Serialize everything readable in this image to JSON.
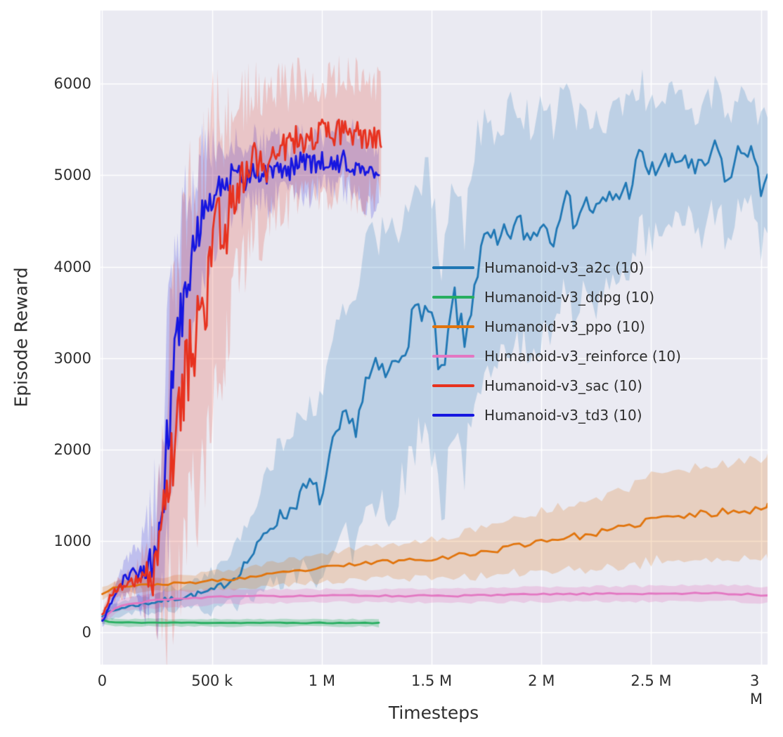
{
  "chart_data": {
    "type": "line",
    "title": "",
    "xlabel": "Timesteps",
    "ylabel": "Episode Reward",
    "xlim": [
      -8000,
      3030000
    ],
    "ylim": [
      -350,
      6800
    ],
    "x_ticks": [
      0,
      500000,
      1000000,
      1500000,
      2000000,
      2500000,
      3000000
    ],
    "x_tick_labels": [
      "0",
      "500 k",
      "1 M",
      "1.5 M",
      "2 M",
      "2.5 M",
      "3 M"
    ],
    "y_ticks": [
      0,
      1000,
      2000,
      3000,
      4000,
      5000,
      6000
    ],
    "y_tick_labels": [
      "0",
      "1000",
      "2000",
      "3000",
      "4000",
      "5000",
      "6000"
    ],
    "grid": true,
    "plot_background": "#eaeaf2",
    "grid_color": "#ffffff",
    "legend_position": "center-right-inside",
    "series": [
      {
        "key": "a2c",
        "legend_label": "Humanoid-v3_a2c (10)",
        "color": "#1f77b4",
        "band_alpha": 0.22,
        "x_start": 0,
        "x_end": 3030000,
        "x_step": 15000,
        "seed": 7,
        "mean_keypoints": [
          [
            0,
            190
          ],
          [
            100000,
            280
          ],
          [
            300000,
            360
          ],
          [
            500000,
            450
          ],
          [
            600000,
            600
          ],
          [
            700000,
            900
          ],
          [
            750000,
            1120
          ],
          [
            800000,
            1250
          ],
          [
            850000,
            1320
          ],
          [
            900000,
            1500
          ],
          [
            950000,
            1620
          ],
          [
            1000000,
            1460
          ],
          [
            1050000,
            2020
          ],
          [
            1100000,
            2320
          ],
          [
            1150000,
            2230
          ],
          [
            1200000,
            2720
          ],
          [
            1250000,
            2870
          ],
          [
            1300000,
            2800
          ],
          [
            1350000,
            3020
          ],
          [
            1400000,
            3320
          ],
          [
            1450000,
            3600
          ],
          [
            1500000,
            3420
          ],
          [
            1550000,
            2660
          ],
          [
            1600000,
            3700
          ],
          [
            1650000,
            3120
          ],
          [
            1700000,
            3920
          ],
          [
            1750000,
            4300
          ],
          [
            1800000,
            4200
          ],
          [
            1850000,
            4380
          ],
          [
            1900000,
            4460
          ],
          [
            1950000,
            4300
          ],
          [
            2000000,
            4520
          ],
          [
            2050000,
            4320
          ],
          [
            2100000,
            4800
          ],
          [
            2150000,
            4520
          ],
          [
            2200000,
            4700
          ],
          [
            2250000,
            4600
          ],
          [
            2300000,
            4720
          ],
          [
            2400000,
            4860
          ],
          [
            2450000,
            5220
          ],
          [
            2500000,
            5010
          ],
          [
            2550000,
            5160
          ],
          [
            2600000,
            5100
          ],
          [
            2650000,
            5230
          ],
          [
            2700000,
            5000
          ],
          [
            2750000,
            5120
          ],
          [
            2800000,
            5300
          ],
          [
            2850000,
            4900
          ],
          [
            2900000,
            5260
          ],
          [
            2950000,
            5320
          ],
          [
            3000000,
            4820
          ],
          [
            3030000,
            5120
          ]
        ],
        "band_halfwidth_keypoints": [
          [
            0,
            60
          ],
          [
            400000,
            130
          ],
          [
            600000,
            300
          ],
          [
            800000,
            750
          ],
          [
            1000000,
            1000
          ],
          [
            1200000,
            1500
          ],
          [
            1400000,
            1450
          ],
          [
            1600000,
            1400
          ],
          [
            1800000,
            1250
          ],
          [
            2000000,
            1300
          ],
          [
            2200000,
            1000
          ],
          [
            2400000,
            850
          ],
          [
            2600000,
            700
          ],
          [
            2800000,
            650
          ],
          [
            3030000,
            700
          ]
        ],
        "noise_amp_keypoints": [
          [
            0,
            15
          ],
          [
            500000,
            40
          ],
          [
            800000,
            90
          ],
          [
            1200000,
            150
          ],
          [
            1600000,
            200
          ],
          [
            2000000,
            150
          ],
          [
            3030000,
            130
          ]
        ]
      },
      {
        "key": "ddpg",
        "legend_label": "Humanoid-v3_ddpg (10)",
        "color": "#27ae60",
        "band_alpha": 0.3,
        "x_start": 0,
        "x_end": 1260000,
        "x_step": 30000,
        "seed": 11,
        "mean_keypoints": [
          [
            0,
            140
          ],
          [
            40000,
            110
          ],
          [
            1260000,
            105
          ]
        ],
        "band_halfwidth_keypoints": [
          [
            0,
            40
          ],
          [
            1260000,
            40
          ]
        ],
        "noise_amp_keypoints": [
          [
            0,
            5
          ],
          [
            1260000,
            5
          ]
        ]
      },
      {
        "key": "ppo",
        "legend_label": "Humanoid-v3_ppo (10)",
        "color": "#e1740c",
        "band_alpha": 0.22,
        "x_start": 0,
        "x_end": 3030000,
        "x_step": 25000,
        "seed": 23,
        "mean_keypoints": [
          [
            0,
            430
          ],
          [
            60000,
            500
          ],
          [
            200000,
            520
          ],
          [
            400000,
            545
          ],
          [
            600000,
            585
          ],
          [
            800000,
            645
          ],
          [
            1000000,
            705
          ],
          [
            1200000,
            760
          ],
          [
            1400000,
            795
          ],
          [
            1600000,
            835
          ],
          [
            1700000,
            870
          ],
          [
            1800000,
            905
          ],
          [
            1900000,
            960
          ],
          [
            2000000,
            1005
          ],
          [
            2100000,
            1040
          ],
          [
            2200000,
            1060
          ],
          [
            2300000,
            1110
          ],
          [
            2400000,
            1155
          ],
          [
            2500000,
            1245
          ],
          [
            2600000,
            1260
          ],
          [
            2700000,
            1290
          ],
          [
            2800000,
            1310
          ],
          [
            2900000,
            1350
          ],
          [
            3000000,
            1340
          ],
          [
            3030000,
            1400
          ]
        ],
        "band_halfwidth_keypoints": [
          [
            0,
            60
          ],
          [
            500000,
            100
          ],
          [
            1000000,
            150
          ],
          [
            1500000,
            210
          ],
          [
            2000000,
            320
          ],
          [
            2500000,
            460
          ],
          [
            3030000,
            560
          ]
        ],
        "noise_amp_keypoints": [
          [
            0,
            10
          ],
          [
            1000000,
            20
          ],
          [
            2000000,
            35
          ],
          [
            3030000,
            45
          ]
        ]
      },
      {
        "key": "reinforce",
        "legend_label": "Humanoid-v3_reinforce (10)",
        "color": "#e377c2",
        "band_alpha": 0.28,
        "x_start": 0,
        "x_end": 3030000,
        "x_step": 30000,
        "seed": 31,
        "mean_keypoints": [
          [
            0,
            150
          ],
          [
            80000,
            300
          ],
          [
            250000,
            355
          ],
          [
            500000,
            390
          ],
          [
            800000,
            400
          ],
          [
            1200000,
            405
          ],
          [
            1600000,
            400
          ],
          [
            2000000,
            420
          ],
          [
            2400000,
            425
          ],
          [
            2800000,
            430
          ],
          [
            3030000,
            410
          ]
        ],
        "band_halfwidth_keypoints": [
          [
            0,
            50
          ],
          [
            300000,
            90
          ],
          [
            1000000,
            70
          ],
          [
            2000000,
            80
          ],
          [
            3030000,
            90
          ]
        ],
        "noise_amp_keypoints": [
          [
            0,
            8
          ],
          [
            3030000,
            10
          ]
        ]
      },
      {
        "key": "sac",
        "legend_label": "Humanoid-v3_sac (10)",
        "color": "#e7321f",
        "band_alpha": 0.2,
        "x_start": 0,
        "x_end": 1270000,
        "x_step": 7000,
        "seed": 43,
        "mean_keypoints": [
          [
            0,
            180
          ],
          [
            40000,
            430
          ],
          [
            100000,
            520
          ],
          [
            150000,
            560
          ],
          [
            200000,
            580
          ],
          [
            250000,
            700
          ],
          [
            280000,
            1150
          ],
          [
            300000,
            1600
          ],
          [
            320000,
            2000
          ],
          [
            350000,
            2400
          ],
          [
            380000,
            2800
          ],
          [
            400000,
            3000
          ],
          [
            430000,
            3300
          ],
          [
            450000,
            3200
          ],
          [
            480000,
            3800
          ],
          [
            500000,
            4200
          ],
          [
            530000,
            4420
          ],
          [
            550000,
            4300
          ],
          [
            600000,
            4800
          ],
          [
            650000,
            5000
          ],
          [
            700000,
            5200
          ],
          [
            750000,
            5120
          ],
          [
            800000,
            5350
          ],
          [
            850000,
            5300
          ],
          [
            900000,
            5420
          ],
          [
            950000,
            5350
          ],
          [
            1000000,
            5450
          ],
          [
            1050000,
            5400
          ],
          [
            1100000,
            5500
          ],
          [
            1150000,
            5430
          ],
          [
            1200000,
            5400
          ],
          [
            1270000,
            5420
          ]
        ],
        "band_halfwidth_keypoints": [
          [
            0,
            60
          ],
          [
            150000,
            140
          ],
          [
            250000,
            400
          ],
          [
            300000,
            1300
          ],
          [
            350000,
            1650
          ],
          [
            400000,
            1800
          ],
          [
            450000,
            1700
          ],
          [
            500000,
            1400
          ],
          [
            550000,
            1200
          ],
          [
            600000,
            1000
          ],
          [
            700000,
            800
          ],
          [
            800000,
            650
          ],
          [
            1000000,
            600
          ],
          [
            1270000,
            620
          ]
        ],
        "noise_amp_keypoints": [
          [
            0,
            20
          ],
          [
            150000,
            60
          ],
          [
            250000,
            300
          ],
          [
            300000,
            480
          ],
          [
            500000,
            420
          ],
          [
            650000,
            260
          ],
          [
            800000,
            170
          ],
          [
            1270000,
            160
          ]
        ]
      },
      {
        "key": "td3",
        "legend_label": "Humanoid-v3_td3 (10)",
        "color": "#1616e0",
        "band_alpha": 0.2,
        "x_start": 0,
        "x_end": 1260000,
        "x_step": 7000,
        "seed": 57,
        "mean_keypoints": [
          [
            0,
            120
          ],
          [
            40000,
            330
          ],
          [
            100000,
            600
          ],
          [
            150000,
            650
          ],
          [
            200000,
            700
          ],
          [
            250000,
            950
          ],
          [
            280000,
            1500
          ],
          [
            300000,
            2200
          ],
          [
            320000,
            2700
          ],
          [
            350000,
            3300
          ],
          [
            380000,
            3800
          ],
          [
            400000,
            4000
          ],
          [
            430000,
            4300
          ],
          [
            450000,
            4500
          ],
          [
            480000,
            4700
          ],
          [
            500000,
            4800
          ],
          [
            550000,
            4900
          ],
          [
            600000,
            5000
          ],
          [
            650000,
            4950
          ],
          [
            700000,
            5060
          ],
          [
            750000,
            5000
          ],
          [
            800000,
            5100
          ],
          [
            850000,
            5050
          ],
          [
            900000,
            5150
          ],
          [
            950000,
            5100
          ],
          [
            1000000,
            5160
          ],
          [
            1050000,
            5100
          ],
          [
            1100000,
            5160
          ],
          [
            1150000,
            5100
          ],
          [
            1200000,
            5060
          ],
          [
            1260000,
            4900
          ]
        ],
        "band_halfwidth_keypoints": [
          [
            0,
            60
          ],
          [
            150000,
            220
          ],
          [
            250000,
            700
          ],
          [
            300000,
            1100
          ],
          [
            350000,
            1000
          ],
          [
            400000,
            900
          ],
          [
            500000,
            520
          ],
          [
            600000,
            380
          ],
          [
            700000,
            330
          ],
          [
            800000,
            300
          ],
          [
            1000000,
            300
          ],
          [
            1260000,
            360
          ]
        ],
        "noise_amp_keypoints": [
          [
            0,
            20
          ],
          [
            150000,
            70
          ],
          [
            250000,
            280
          ],
          [
            300000,
            380
          ],
          [
            500000,
            180
          ],
          [
            700000,
            120
          ],
          [
            1260000,
            110
          ]
        ]
      }
    ]
  }
}
